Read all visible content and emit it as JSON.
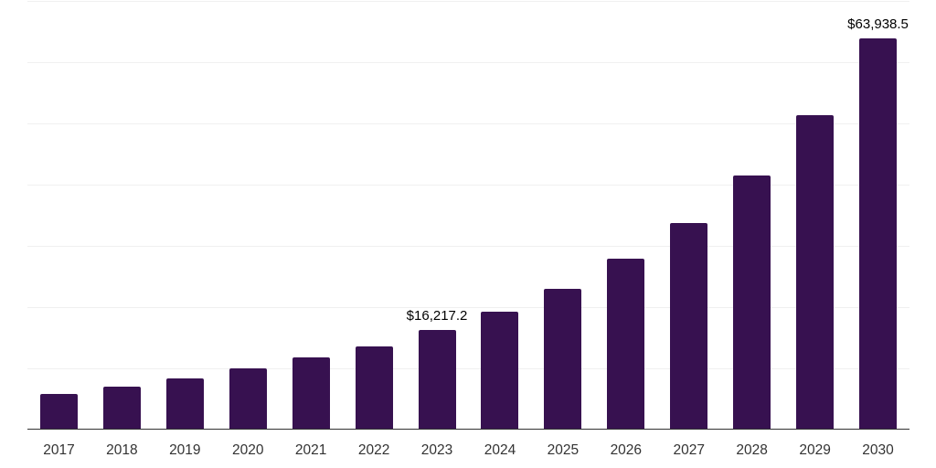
{
  "chart_data": {
    "type": "bar",
    "title": "",
    "xlabel": "",
    "ylabel": "",
    "categories": [
      "2017",
      "2018",
      "2019",
      "2020",
      "2021",
      "2022",
      "2023",
      "2024",
      "2025",
      "2026",
      "2027",
      "2028",
      "2029",
      "2030"
    ],
    "values": [
      5870,
      7060,
      8360,
      9960,
      11790,
      13580,
      16217.2,
      19260,
      22990,
      27870,
      33730,
      41450,
      51350,
      63938.5
    ],
    "data_labels": [
      {
        "category": "2023",
        "text": "$16,217.2"
      },
      {
        "category": "2030",
        "text": "$63,938.5"
      }
    ],
    "ylim": [
      0,
      70000
    ],
    "grid_step": 10000,
    "grid": true,
    "legend": false,
    "colors": {
      "bar": "#371150",
      "gridline": "#f0f0f0",
      "axis_line": "#333333",
      "tick_label": "#333333",
      "data_label": "#000000",
      "background": "#ffffff"
    }
  }
}
